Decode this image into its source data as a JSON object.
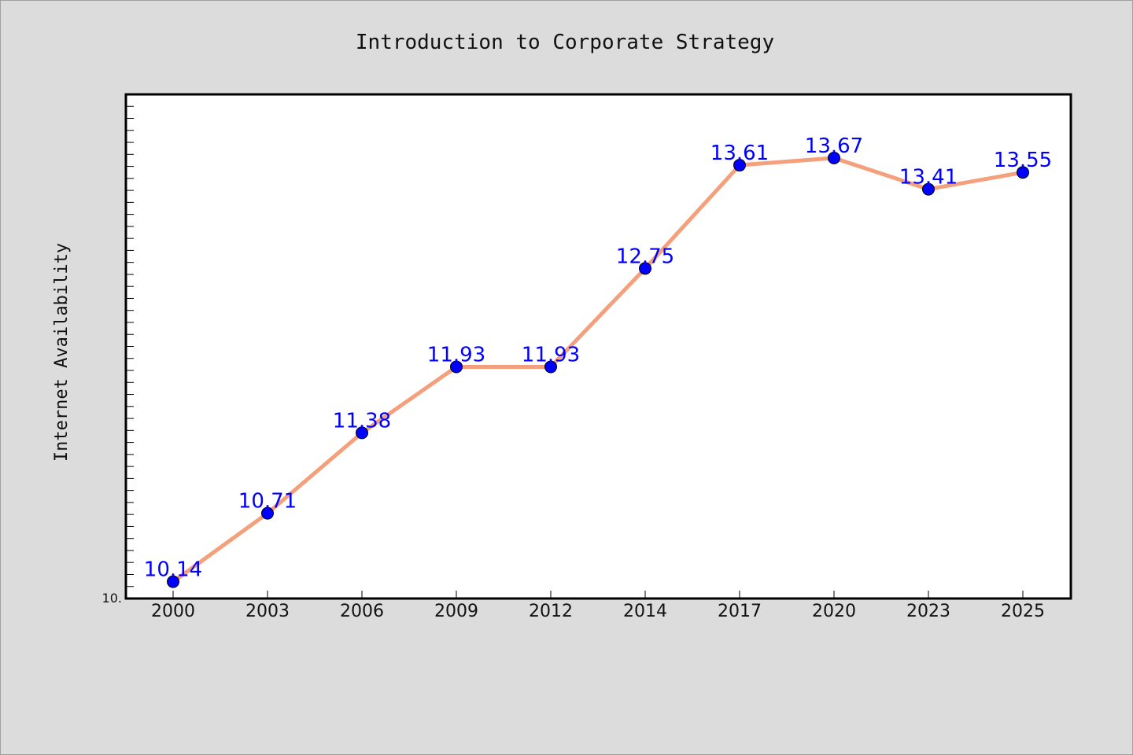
{
  "chart_data": {
    "type": "line",
    "title": "Introduction to Corporate Strategy",
    "xlabel": "",
    "ylabel": "Internet Availability",
    "categories": [
      "2000",
      "2003",
      "2006",
      "2009",
      "2012",
      "2014",
      "2017",
      "2020",
      "2023",
      "2025"
    ],
    "series": [
      {
        "values": [
          10.14,
          10.71,
          11.38,
          11.93,
          11.93,
          12.75,
          13.61,
          13.67,
          13.41,
          13.55
        ],
        "data_labels": [
          "10.14",
          "10.71",
          "11.38",
          "11.93",
          "11.93",
          "12.75",
          "13.61",
          "13.67",
          "13.41",
          "13.55"
        ]
      }
    ],
    "y_tick_labels": [
      "10."
    ],
    "ylim": [
      10.0,
      14.2
    ],
    "grid": false,
    "legend": "none",
    "colors": {
      "background": "#dcdcdc",
      "plot_area": "#ffffff",
      "line": "#f4a07c",
      "marker": "#0000ff",
      "data_label": "#0000ff"
    }
  }
}
